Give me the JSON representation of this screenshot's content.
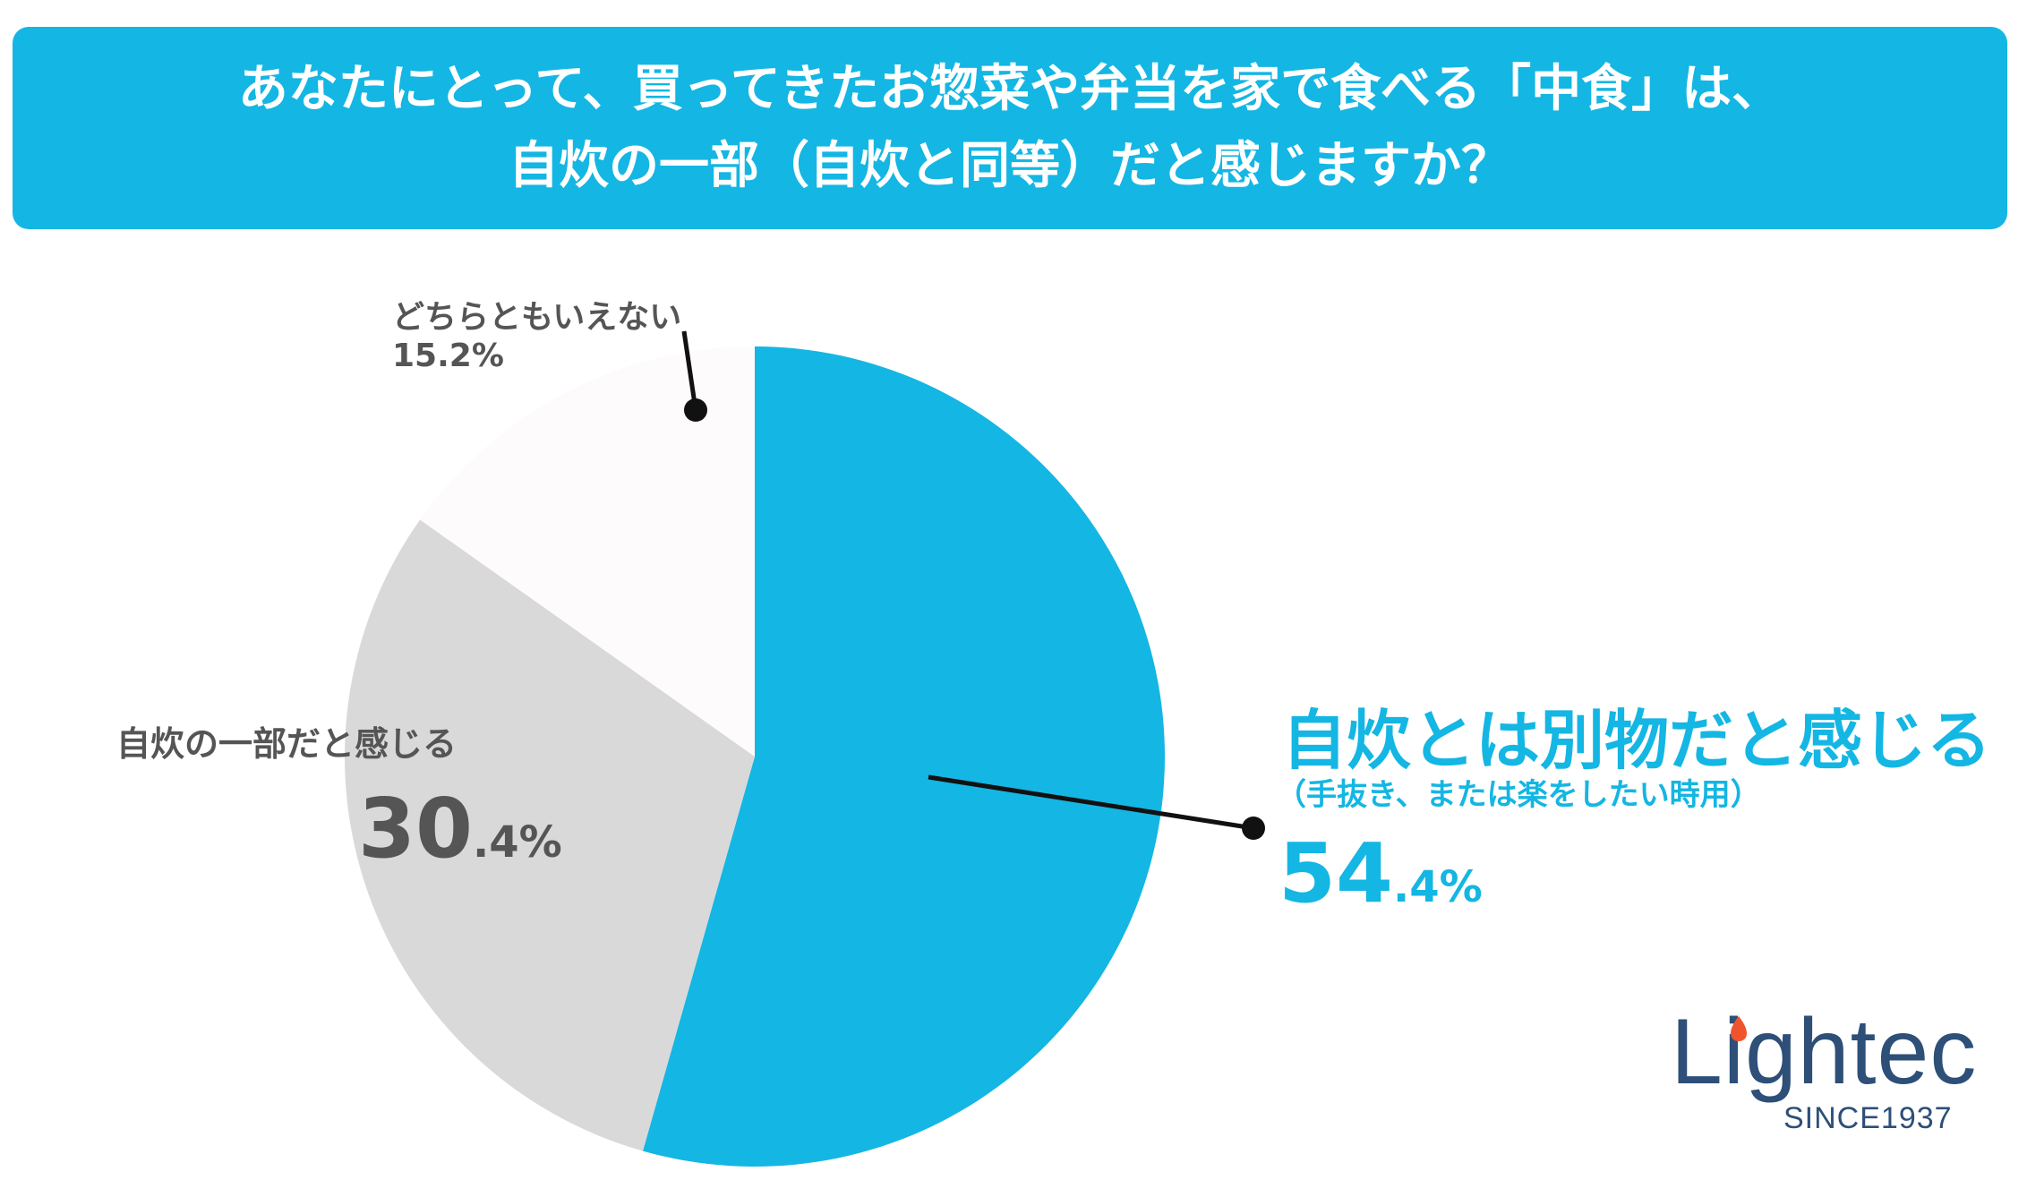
{
  "title": {
    "line1": "あなたにとって、買ってきたお惣菜や弁当を家で食べる「中食」は、",
    "line2": "自炊の一部（自炊と同等）だと感じますか？"
  },
  "chart_data": {
    "type": "pie",
    "slices": [
      {
        "label": "自炊とは別物だと感じる",
        "sublabel": "（手抜き、または楽をしたい時用）",
        "value": 54.4,
        "int": "54",
        "dec": ".4%",
        "color": "#14b6e3"
      },
      {
        "label": "自炊の一部だと感じる",
        "value": 30.4,
        "int": "30",
        "dec": ".4%",
        "color": "#d9d9d9"
      },
      {
        "label": "どちらともいえない",
        "value": 15.2,
        "text": "15.2%",
        "color": "#fdfbfc"
      }
    ]
  },
  "logo": {
    "word": "Lightec",
    "since": "SINCE1937"
  },
  "colors": {
    "accent": "#14b6e3",
    "text_gray": "#555555",
    "logo": "#2d4f78"
  }
}
